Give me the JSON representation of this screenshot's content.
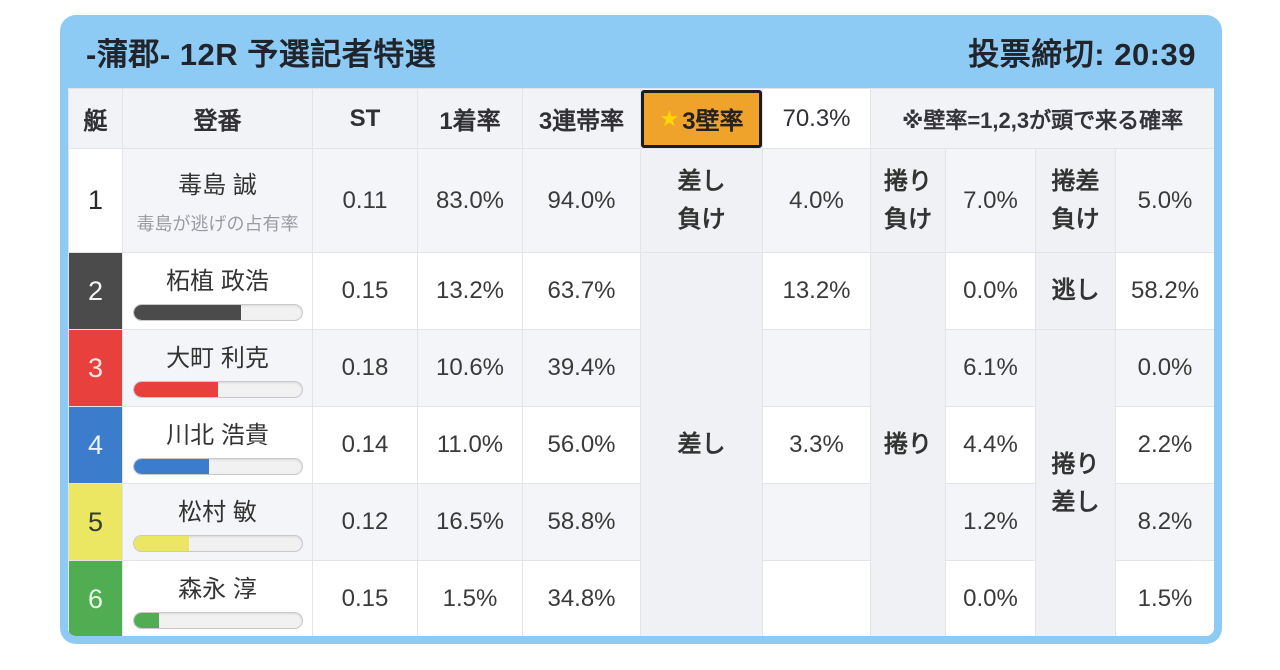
{
  "header": {
    "title": "-蒲郡- 12R 予選記者特選",
    "deadline": "投票締切: 20:39"
  },
  "colors": {
    "frame_blue": "#8dcbf4",
    "highlight_orange": "#efa32a",
    "star_yellow": "#ffd60a",
    "grid_line": "#e3e4e8"
  },
  "table": {
    "headers": {
      "boat": "艇",
      "racer": "登番",
      "st": "ST",
      "first_rate": "1着率",
      "top3_rate": "3連帯率",
      "wall_star": "★",
      "wall_label": "3壁率",
      "wall_value": "70.3%",
      "note": "※壁率=1,2,3が頭で来る確率"
    },
    "rows": [
      {
        "boat": "1",
        "name": "毒島 誠",
        "sub": "毒島が逃げの占有率",
        "st": "0.11",
        "first": "83.0%",
        "top3": "94.0%",
        "color": "#ffffff",
        "fg": "#2b2b2b"
      },
      {
        "boat": "2",
        "name": "柘植 政浩",
        "st": "0.15",
        "first": "13.2%",
        "top3": "63.7%",
        "bar_pct": 64,
        "color": "#4b4b4b",
        "fg": "#f4f4f4"
      },
      {
        "boat": "3",
        "name": "大町 利克",
        "st": "0.18",
        "first": "10.6%",
        "top3": "39.4%",
        "bar_pct": 50,
        "color": "#e8403d",
        "fg": "#fbeaea"
      },
      {
        "boat": "4",
        "name": "川北 浩貴",
        "st": "0.14",
        "first": "11.0%",
        "top3": "56.0%",
        "bar_pct": 45,
        "color": "#3b7ccc",
        "fg": "#e9f1fb"
      },
      {
        "boat": "5",
        "name": "松村 敏",
        "st": "0.12",
        "first": "16.5%",
        "top3": "58.8%",
        "bar_pct": 33,
        "color": "#ece763",
        "fg": "#3a3a3a"
      },
      {
        "boat": "6",
        "name": "森永 淳",
        "st": "0.15",
        "first": "1.5%",
        "top3": "34.8%",
        "bar_pct": 15,
        "color": "#50ad52",
        "fg": "#eaf6ea"
      }
    ],
    "outcome": {
      "row1": {
        "sashi_make_label": "差し\n負け",
        "sashi_make_value": "4.0%",
        "makuri_make_label": "捲り\n負け",
        "makuri_make_value": "7.0%",
        "makurizashi_make_label": "捲差\n負け",
        "makurizashi_make_value": "5.0%"
      },
      "sashi_label": "差し",
      "sashi_values": [
        "13.2%",
        "",
        "3.3%",
        "",
        ""
      ],
      "makuri_label": "捲り",
      "makuri_values": [
        "0.0%",
        "6.1%",
        "4.4%",
        "1.2%",
        "0.0%"
      ],
      "nigashi_label": "逃し",
      "nigashi_value": "58.2%",
      "makurizashi_label": "捲り\n差し",
      "makurizashi_values": [
        "0.0%",
        "2.2%",
        "8.2%",
        "1.5%"
      ]
    }
  }
}
